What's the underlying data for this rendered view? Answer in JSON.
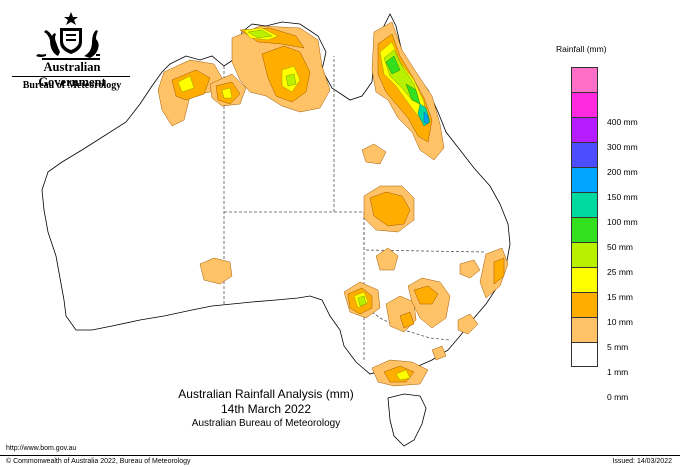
{
  "header": {
    "government": "Australian Government",
    "agency": "Bureau of Meteorology"
  },
  "map": {
    "title": "Australian Rainfall Analysis (mm)",
    "date": "14th March 2022",
    "source": "Australian Bureau of Meteorology"
  },
  "legend": {
    "title": "Rainfall (mm)",
    "classes": [
      {
        "label": "",
        "color": "#ff6ec7"
      },
      {
        "label": "400 mm",
        "color": "#ff29e0"
      },
      {
        "label": "300 mm",
        "color": "#b41cff"
      },
      {
        "label": "200 mm",
        "color": "#4d4dff"
      },
      {
        "label": "150 mm",
        "color": "#00a5ff"
      },
      {
        "label": "100 mm",
        "color": "#00d9a0"
      },
      {
        "label": "50 mm",
        "color": "#33e01e"
      },
      {
        "label": "25 mm",
        "color": "#b8f000"
      },
      {
        "label": "15 mm",
        "color": "#ffff00"
      },
      {
        "label": "10 mm",
        "color": "#ffad00"
      },
      {
        "label": "5 mm",
        "color": "#ffc266"
      },
      {
        "label": "1 mm",
        "color": "#ffffff"
      },
      {
        "label": "0 mm",
        "color": ""
      }
    ]
  },
  "footer": {
    "url": "http://www.bom.gov.au",
    "copyright": "© Commonwealth of Australia 2022, Bureau of Meteorology",
    "issued": "Issued: 14/03/2022"
  }
}
